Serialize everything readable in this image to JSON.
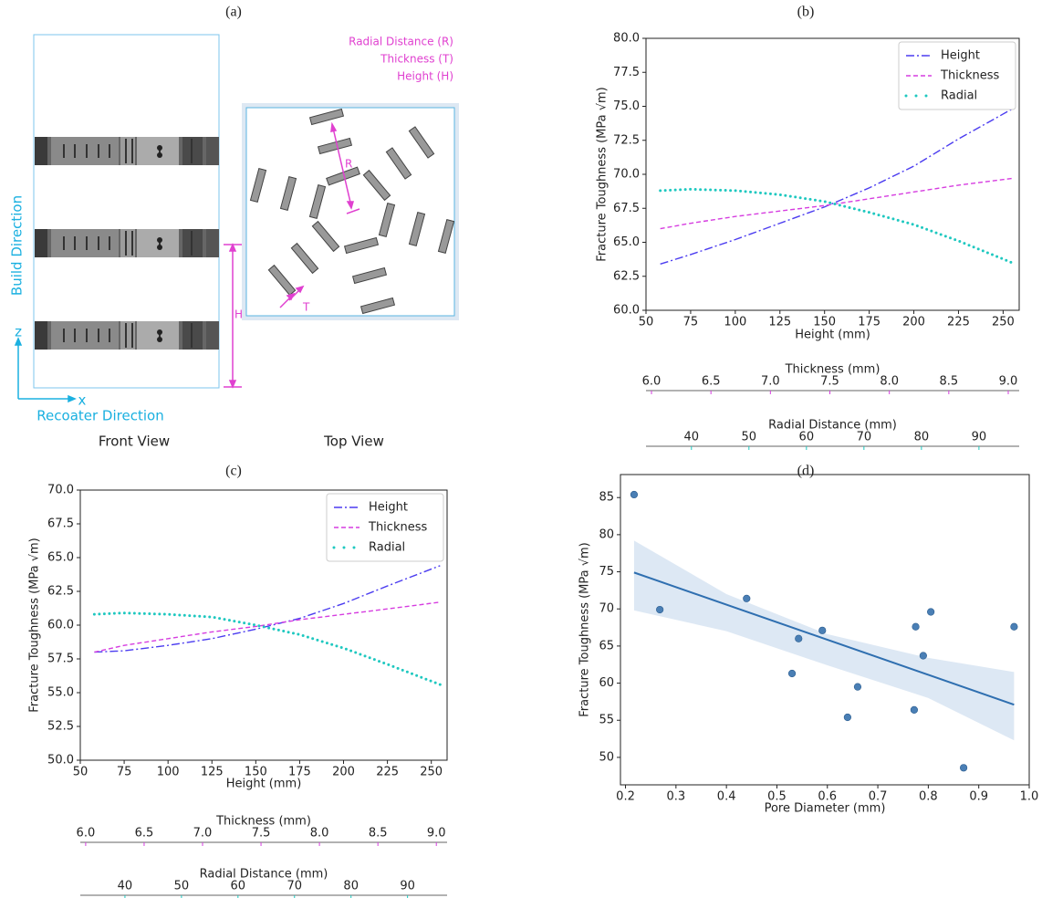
{
  "diagram": {
    "label": "(a)",
    "legend": [
      "Radial Distance (R)",
      "Thickness (T)",
      "Height (H)"
    ],
    "build_direction": "Build Direction",
    "recoater_direction": "Recoater Direction",
    "z": "z",
    "x": "x",
    "front_view": "Front View",
    "top_view": "Top View",
    "r": "R",
    "t": "T",
    "h": "H"
  },
  "chart_data": [
    {
      "type": "line",
      "label": "(b)",
      "ylabel": "Fracture Toughness (MPa √m)",
      "xlabel": "Height (mm)",
      "xcolor": "#4b3cf0",
      "x": [
        58,
        75,
        100,
        125,
        150,
        175,
        200,
        225,
        255
      ],
      "series": [
        {
          "name": "Height",
          "color": "#4b3cf0",
          "linestyle": "dashdot",
          "values": [
            63.4,
            64.1,
            65.2,
            66.4,
            67.6,
            69.0,
            70.6,
            72.6,
            74.8
          ]
        },
        {
          "name": "Thickness",
          "color": "#d63de0",
          "linestyle": "dashed",
          "values": [
            66.0,
            66.4,
            66.9,
            67.3,
            67.7,
            68.2,
            68.7,
            69.2,
            69.7
          ]
        },
        {
          "name": "Radial",
          "color": "#1fc8c0",
          "linestyle": "dotted",
          "values": [
            68.8,
            68.9,
            68.8,
            68.5,
            68.0,
            67.2,
            66.3,
            65.1,
            63.5
          ]
        }
      ],
      "xlim": [
        50,
        259
      ],
      "xticks": [
        50,
        75,
        100,
        125,
        150,
        175,
        200,
        225,
        250
      ],
      "ylim": [
        60,
        80
      ],
      "yticks": [
        {
          "value": 60,
          "label": "60.0"
        },
        {
          "value": 62.5,
          "label": "62.5"
        },
        {
          "value": 65,
          "label": "65.0"
        },
        {
          "value": 67.5,
          "label": "67.5"
        },
        {
          "value": 70,
          "label": "70.0"
        },
        {
          "value": 72.5,
          "label": "72.5"
        },
        {
          "value": 75,
          "label": "75.0"
        },
        {
          "value": 77.5,
          "label": "77.5"
        },
        {
          "value": 80,
          "label": "80.0"
        }
      ],
      "legend": "upper right",
      "extra_axes": [
        {
          "label": "Thickness (mm)",
          "color": "#d63de0",
          "xlim": [
            5.954,
            9.092
          ],
          "xticks": [
            {
              "value": 6,
              "label": "6.0"
            },
            {
              "value": 6.5,
              "label": "6.5"
            },
            {
              "value": 7,
              "label": "7.0"
            },
            {
              "value": 7.5,
              "label": "7.5"
            },
            {
              "value": 8,
              "label": "8.0"
            },
            {
              "value": 8.5,
              "label": "8.5"
            },
            {
              "value": 9,
              "label": "9.0"
            }
          ]
        },
        {
          "label": "Radial Distance (mm)",
          "color": "#1fc8c0",
          "xlim": [
            32.1,
            97
          ],
          "xticks": [
            40,
            50,
            60,
            70,
            80,
            90
          ]
        }
      ]
    },
    {
      "type": "line",
      "label": "(c)",
      "ylabel": "Fracture Toughness (MPa √m)",
      "xlabel": "Height (mm)",
      "xcolor": "#4b3cf0",
      "x": [
        58,
        75,
        100,
        125,
        150,
        175,
        200,
        225,
        255
      ],
      "series": [
        {
          "name": "Height",
          "color": "#4b3cf0",
          "linestyle": "dashdot",
          "values": [
            58.0,
            58.1,
            58.5,
            59.0,
            59.7,
            60.5,
            61.6,
            62.9,
            64.4
          ]
        },
        {
          "name": "Thickness",
          "color": "#d63de0",
          "linestyle": "dashed",
          "values": [
            58.0,
            58.5,
            59.0,
            59.5,
            59.9,
            60.4,
            60.8,
            61.2,
            61.7
          ]
        },
        {
          "name": "Radial",
          "color": "#1fc8c0",
          "linestyle": "dotted",
          "values": [
            60.8,
            60.9,
            60.8,
            60.6,
            60.0,
            59.3,
            58.3,
            57.1,
            55.6
          ]
        }
      ],
      "xlim": [
        50,
        259
      ],
      "xticks": [
        50,
        75,
        100,
        125,
        150,
        175,
        200,
        225,
        250
      ],
      "ylim": [
        50,
        70
      ],
      "yticks": [
        {
          "value": 50,
          "label": "50.0"
        },
        {
          "value": 52.5,
          "label": "52.5"
        },
        {
          "value": 55,
          "label": "55.0"
        },
        {
          "value": 57.5,
          "label": "57.5"
        },
        {
          "value": 60,
          "label": "60.0"
        },
        {
          "value": 62.5,
          "label": "62.5"
        },
        {
          "value": 65,
          "label": "65.0"
        },
        {
          "value": 67.5,
          "label": "67.5"
        },
        {
          "value": 70,
          "label": "70.0"
        }
      ],
      "legend": "upper right",
      "extra_axes": [
        {
          "label": "Thickness (mm)",
          "color": "#d63de0",
          "xlim": [
            5.954,
            9.092
          ],
          "xticks": [
            {
              "value": 6,
              "label": "6.0"
            },
            {
              "value": 6.5,
              "label": "6.5"
            },
            {
              "value": 7,
              "label": "7.0"
            },
            {
              "value": 7.5,
              "label": "7.5"
            },
            {
              "value": 8,
              "label": "8.0"
            },
            {
              "value": 8.5,
              "label": "8.5"
            },
            {
              "value": 9,
              "label": "9.0"
            }
          ]
        },
        {
          "label": "Radial Distance (mm)",
          "color": "#1fc8c0",
          "xlim": [
            32.1,
            97
          ],
          "xticks": [
            40,
            50,
            60,
            70,
            80,
            90
          ]
        }
      ]
    },
    {
      "type": "scatter",
      "label": "(d)",
      "ylabel": "Fracture Toughness (MPa √m)",
      "xlabel": "Pore Diameter (mm)",
      "color": "#4a7fb5",
      "x": [
        0.217,
        0.268,
        0.44,
        0.53,
        0.543,
        0.59,
        0.64,
        0.66,
        0.772,
        0.775,
        0.79,
        0.805,
        0.87,
        0.97
      ],
      "values": [
        85.4,
        69.9,
        71.4,
        61.3,
        66.0,
        67.1,
        55.4,
        59.5,
        56.4,
        67.6,
        63.7,
        69.6,
        48.6,
        67.6
      ],
      "fit": {
        "color": "#2f6fb0",
        "x": [
          0.217,
          0.97
        ],
        "values": [
          74.9,
          57.1
        ]
      },
      "band": {
        "color": "#c6d9ec",
        "x": [
          0.217,
          0.4,
          0.6,
          0.8,
          0.97
        ],
        "upper": [
          79.2,
          72.0,
          66.6,
          63.4,
          61.5
        ],
        "lower": [
          69.8,
          67.0,
          62.4,
          58.0,
          52.3
        ]
      },
      "xlim": [
        0.19,
        1.0
      ],
      "xticks": [
        0.2,
        0.3,
        0.4,
        0.5,
        0.6,
        0.7,
        0.8,
        0.9,
        {
          "value": 1,
          "label": "1.0"
        }
      ],
      "ylim": [
        46.3,
        88.1
      ],
      "yticks": [
        50,
        55,
        60,
        65,
        70,
        75,
        80,
        85
      ]
    }
  ]
}
